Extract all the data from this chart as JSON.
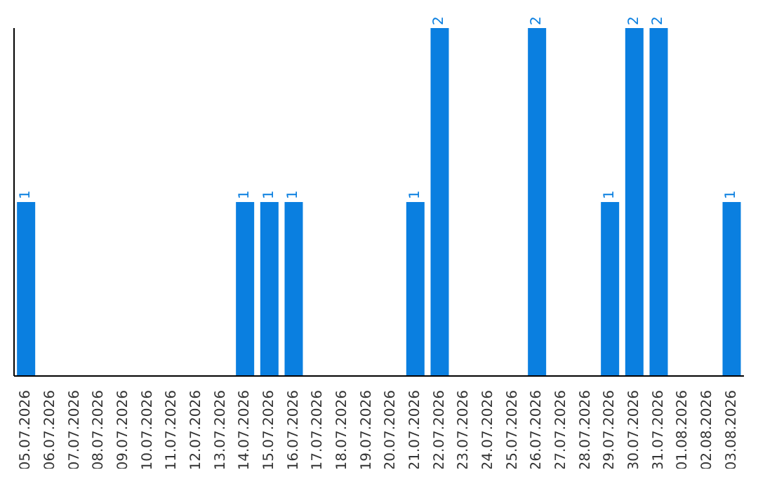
{
  "chart_data": {
    "type": "bar",
    "categories": [
      "05.07.2026",
      "06.07.2026",
      "07.07.2026",
      "08.07.2026",
      "09.07.2026",
      "10.07.2026",
      "11.07.2026",
      "12.07.2026",
      "13.07.2026",
      "14.07.2026",
      "15.07.2026",
      "16.07.2026",
      "17.07.2026",
      "18.07.2026",
      "19.07.2026",
      "20.07.2026",
      "21.07.2026",
      "22.07.2026",
      "23.07.2026",
      "24.07.2026",
      "25.07.2026",
      "26.07.2026",
      "27.07.2026",
      "28.07.2026",
      "29.07.2026",
      "30.07.2026",
      "31.07.2026",
      "01.08.2026",
      "02.08.2026",
      "03.08.2026"
    ],
    "values": [
      1,
      0,
      0,
      0,
      0,
      0,
      0,
      0,
      0,
      1,
      1,
      1,
      0,
      0,
      0,
      0,
      1,
      2,
      0,
      0,
      0,
      2,
      0,
      0,
      1,
      2,
      2,
      0,
      0,
      1
    ],
    "value_labels": [
      "1",
      null,
      null,
      null,
      null,
      null,
      null,
      null,
      null,
      "1",
      "1",
      "1",
      null,
      null,
      null,
      null,
      "1",
      "2",
      null,
      null,
      null,
      "2",
      null,
      null,
      "1",
      "2",
      "2",
      null,
      null,
      "1"
    ],
    "color": "#0a7fe0",
    "tick_labels": "x"
  }
}
